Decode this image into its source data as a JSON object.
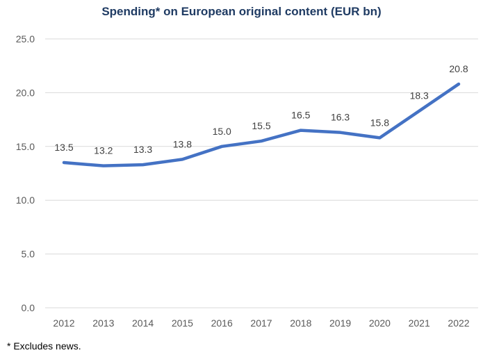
{
  "chart_data": {
    "type": "line",
    "title": "Spending* on European original content (EUR bn)",
    "categories": [
      "2012",
      "2013",
      "2014",
      "2015",
      "2016",
      "2017",
      "2018",
      "2019",
      "2020",
      "2021",
      "2022"
    ],
    "series": [
      {
        "name": "Spending",
        "values": [
          13.5,
          13.2,
          13.3,
          13.8,
          15.0,
          15.5,
          16.5,
          16.3,
          15.8,
          18.3,
          20.8
        ]
      }
    ],
    "data_labels": [
      "13.5",
      "13.2",
      "13.3",
      "13.8",
      "15.0",
      "15.5",
      "16.5",
      "16.3",
      "15.8",
      "18.3",
      "20.8"
    ],
    "ylim": [
      0,
      25
    ],
    "yticks": [
      "0.0",
      "5.0",
      "10.0",
      "15.0",
      "20.0",
      "25.0"
    ],
    "ytick_values": [
      0,
      5,
      10,
      15,
      20,
      25
    ],
    "grid": true,
    "line_color": "#4472c4",
    "footnote": "* Excludes news."
  }
}
